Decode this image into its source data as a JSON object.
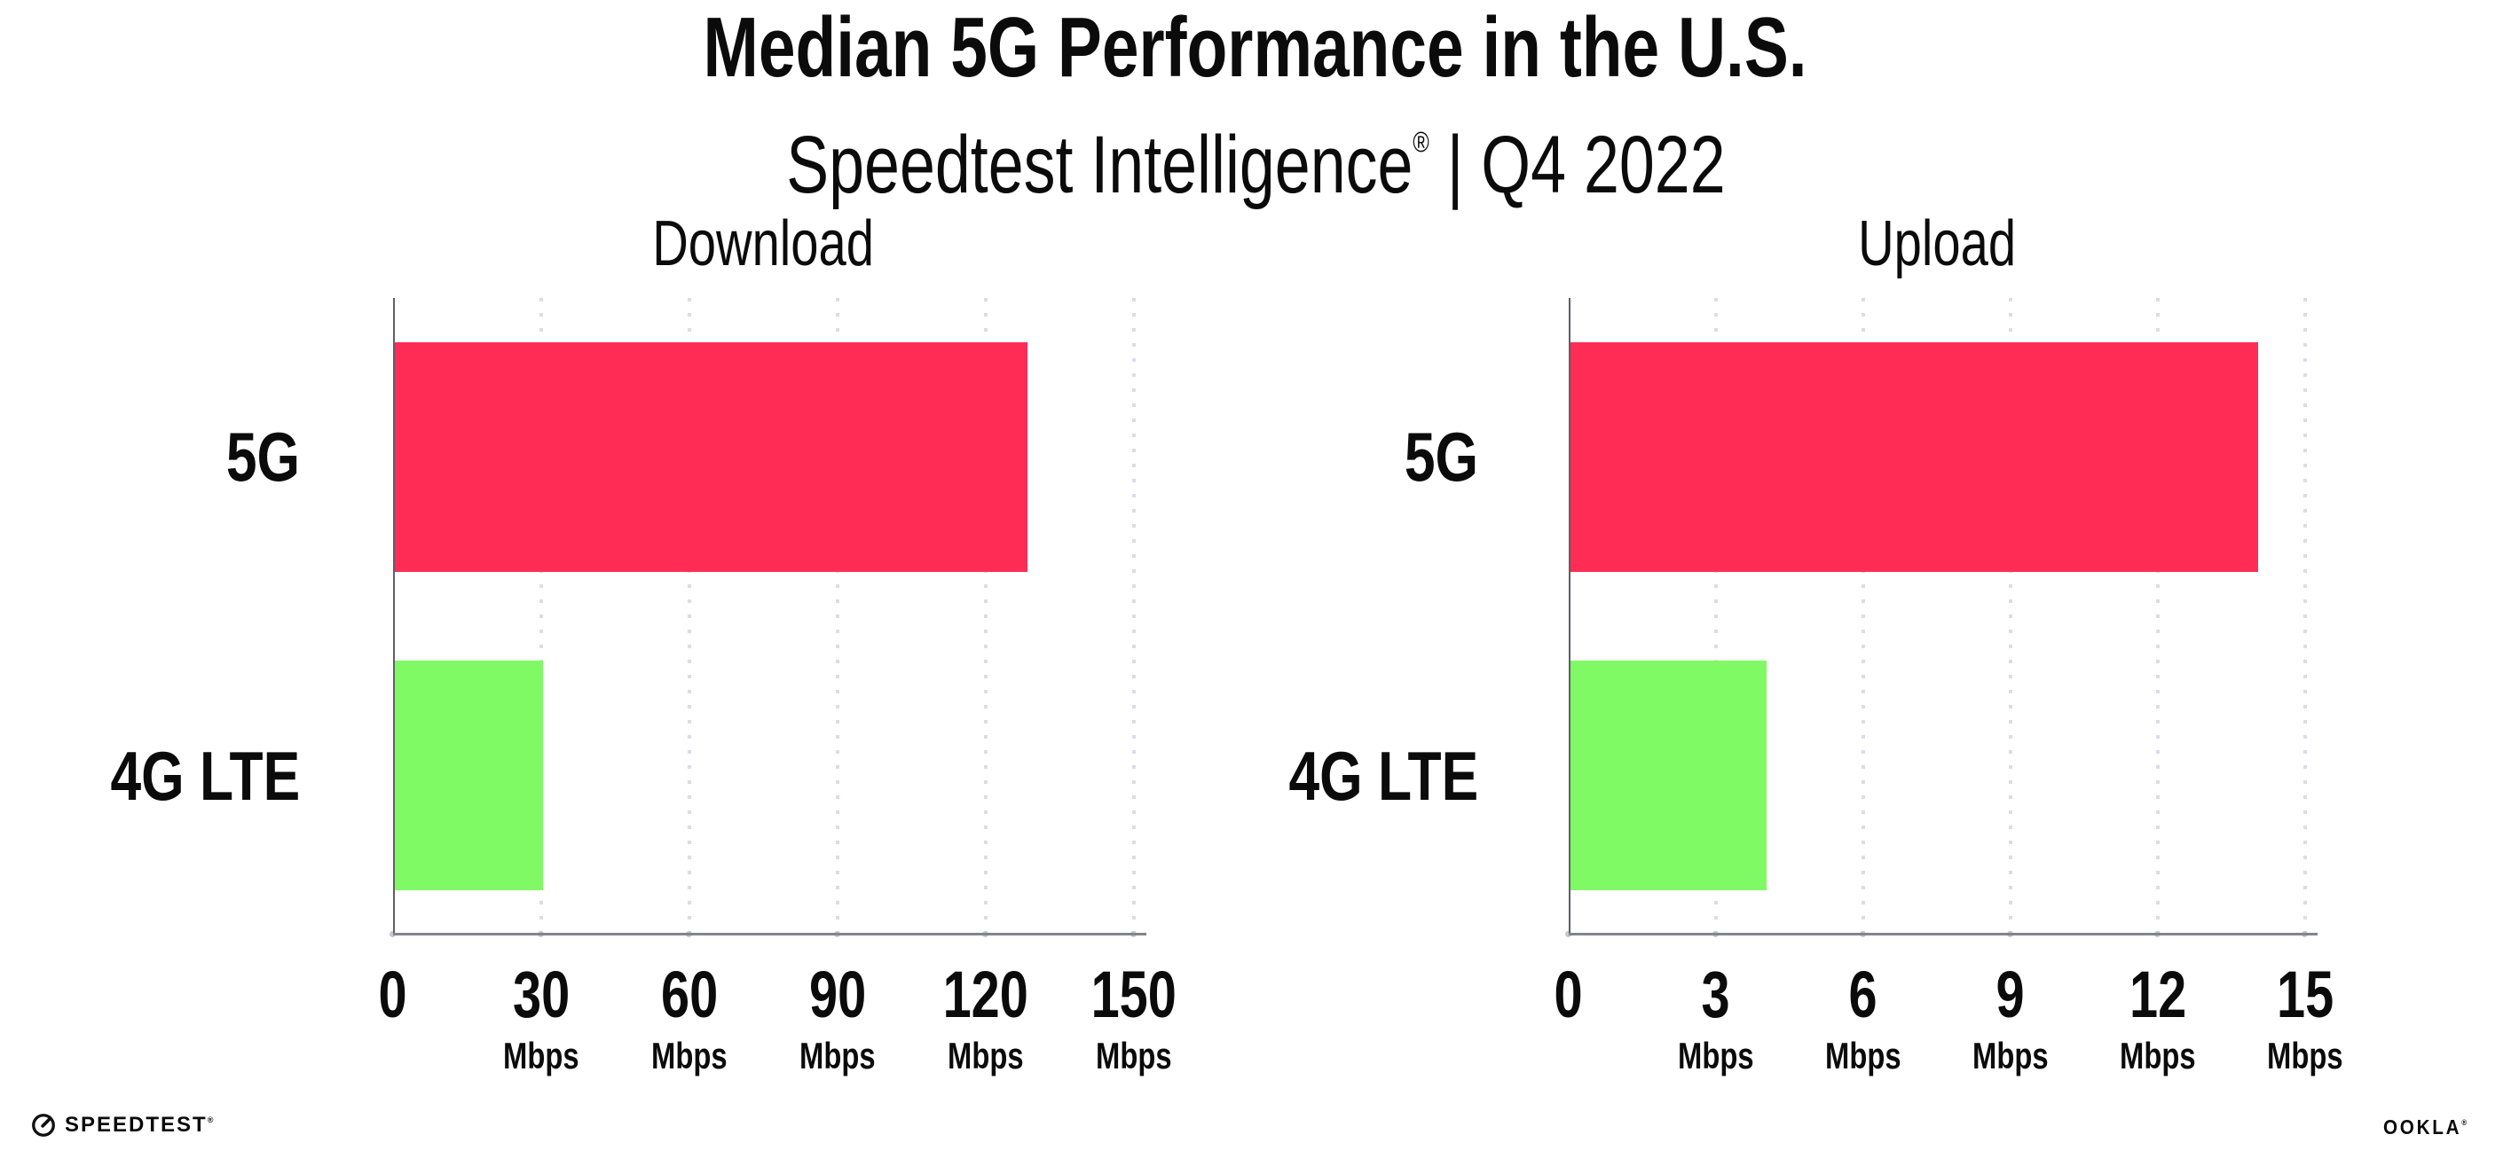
{
  "header": {
    "title": "Median 5G Performance in the U.S.",
    "subtitle_brand": "Speedtest Intelligence",
    "subtitle_reg": "®",
    "subtitle_rest": " | Q4 2022"
  },
  "colors": {
    "bar_5g": "#ff2d55",
    "bar_4g_lte": "#80fa64",
    "gridline": "#dcdce6",
    "x_axis_line": "#84848c",
    "y_axis_line": "#5f5f66",
    "text": "#0b0b0c"
  },
  "chart_data": [
    {
      "type": "bar",
      "orientation": "horizontal",
      "title": "Download",
      "categories": [
        "5G",
        "4G LTE"
      ],
      "values": [
        128,
        30
      ],
      "unit": "Mbps",
      "xlim": [
        0,
        150
      ],
      "xticks": [
        0,
        30,
        60,
        90,
        120,
        150
      ],
      "bar_colors": [
        "#ff2d55",
        "#80fa64"
      ],
      "grid": "dotted-vertical",
      "legend": "none"
    },
    {
      "type": "bar",
      "orientation": "horizontal",
      "title": "Upload",
      "categories": [
        "5G",
        "4G LTE"
      ],
      "values": [
        14,
        4
      ],
      "unit": "Mbps",
      "xlim": [
        0,
        15
      ],
      "xticks": [
        0,
        3,
        6,
        9,
        12,
        15
      ],
      "bar_colors": [
        "#ff2d55",
        "#80fa64"
      ],
      "grid": "dotted-vertical",
      "legend": "none"
    }
  ],
  "footer": {
    "speedtest_label": "SPEEDTEST",
    "speedtest_reg": "®",
    "ookla_label": "OOKLA",
    "ookla_reg": "®"
  }
}
